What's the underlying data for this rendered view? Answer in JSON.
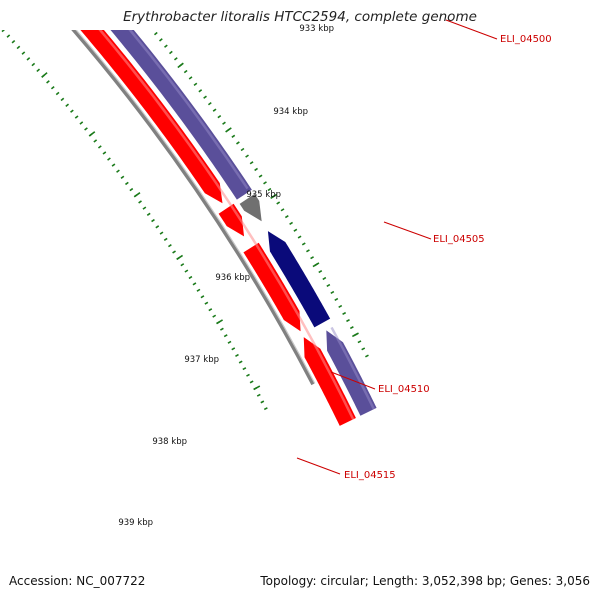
{
  "title": "Erythrobacter litoralis HTCC2594, complete genome",
  "footer": {
    "accession": "Accession: NC_007722",
    "summary": "Topology: circular; Length: 3,052,398 bp; Genes: 3,056"
  },
  "colors": {
    "forward_gene": "#ff0000",
    "reverse_gene_light": "#5a4f9a",
    "reverse_gene_dark": "#0a0a7a",
    "other_feature": "#707070",
    "backbone": "#808080",
    "ticks": "#1a7a1a",
    "label_text": "#cc0000"
  },
  "scale": {
    "major_ticks": [
      "933 kbp",
      "934 kbp",
      "935 kbp",
      "936 kbp",
      "937 kbp",
      "938 kbp",
      "939 kbp"
    ]
  },
  "genes": [
    {
      "label": "ELI_04500"
    },
    {
      "label": "ELI_04505"
    },
    {
      "label": "ELI_04510"
    },
    {
      "label": "ELI_04515"
    }
  ]
}
